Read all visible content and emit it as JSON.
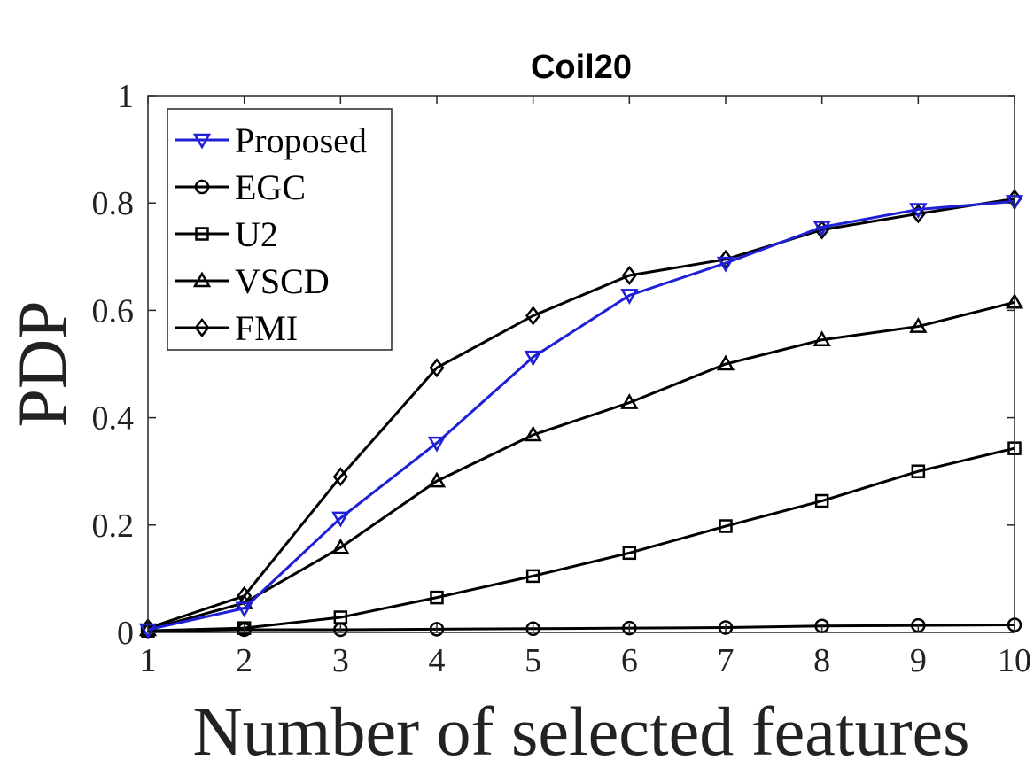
{
  "chart_data": {
    "type": "line",
    "title": "Coil20",
    "xlabel": "Number of selected features",
    "ylabel": "PDP",
    "x": [
      1,
      2,
      3,
      4,
      5,
      6,
      7,
      8,
      9,
      10
    ],
    "xlim": [
      1,
      10
    ],
    "ylim": [
      0,
      1
    ],
    "xticks": [
      "1",
      "2",
      "3",
      "4",
      "5",
      "6",
      "7",
      "8",
      "9",
      "10"
    ],
    "yticks": [
      "0",
      "0.2",
      "0.4",
      "0.6",
      "0.8",
      "1"
    ],
    "grid": false,
    "legend_position": "top-left",
    "series": [
      {
        "name": "Proposed",
        "marker": "triangle-down",
        "color": "#1f1fd6",
        "values": [
          0.005,
          0.045,
          0.213,
          0.353,
          0.513,
          0.628,
          0.688,
          0.755,
          0.788,
          0.803
        ]
      },
      {
        "name": "EGC",
        "marker": "circle",
        "color": "#000000",
        "values": [
          0.003,
          0.005,
          0.005,
          0.006,
          0.007,
          0.008,
          0.009,
          0.012,
          0.013,
          0.014
        ]
      },
      {
        "name": "U2",
        "marker": "square",
        "color": "#000000",
        "values": [
          0.003,
          0.008,
          0.028,
          0.065,
          0.105,
          0.148,
          0.198,
          0.245,
          0.3,
          0.343
        ]
      },
      {
        "name": "VSCD",
        "marker": "triangle-up",
        "color": "#000000",
        "values": [
          0.005,
          0.055,
          0.158,
          0.282,
          0.368,
          0.428,
          0.5,
          0.545,
          0.57,
          0.615
        ]
      },
      {
        "name": "FMI",
        "marker": "diamond",
        "color": "#000000",
        "values": [
          0.008,
          0.068,
          0.29,
          0.493,
          0.59,
          0.665,
          0.695,
          0.75,
          0.78,
          0.808
        ]
      }
    ]
  }
}
